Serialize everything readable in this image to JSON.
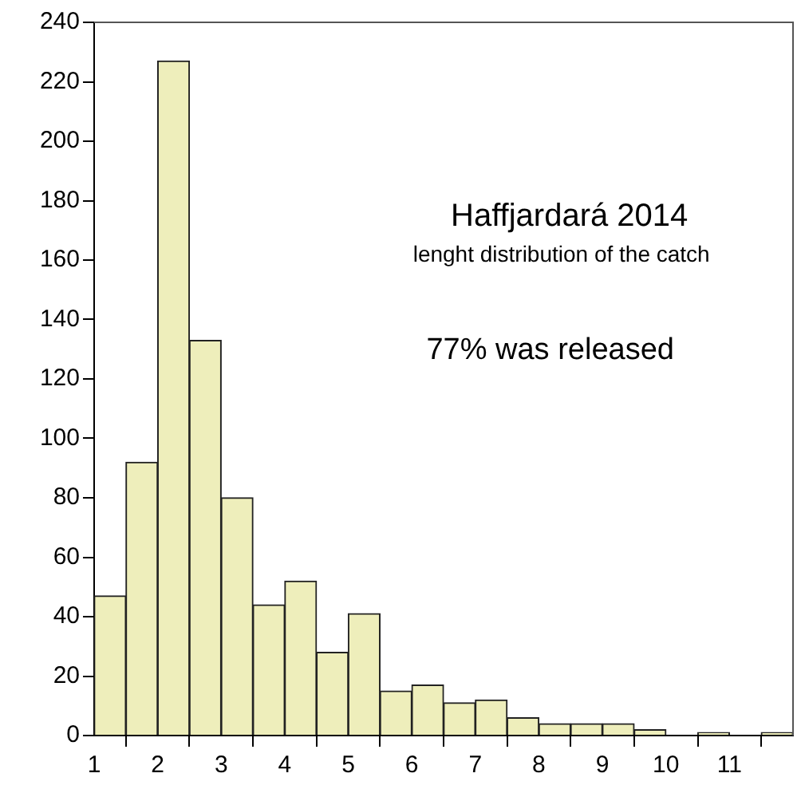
{
  "chart_data": {
    "type": "histogram",
    "title": "Haffjardará 2014",
    "subtitle": "lenght distribution of the catch",
    "annotations": [
      "77% was released"
    ],
    "bins": [
      1,
      1.5,
      2,
      2.5,
      3,
      3.5,
      4,
      4.5,
      5,
      5.5,
      6,
      6.5,
      7,
      7.5,
      8,
      8.5,
      9,
      9.5,
      10,
      10.5,
      11,
      11.5,
      12
    ],
    "values": [
      47,
      92,
      227,
      133,
      80,
      44,
      52,
      28,
      41,
      15,
      17,
      11,
      12,
      6,
      4,
      4,
      4,
      2,
      0,
      1,
      0,
      1
    ],
    "color": "#eeeebb",
    "xlim": [
      1,
      12
    ],
    "xticks": [
      1,
      2,
      3,
      4,
      5,
      6,
      7,
      8,
      9,
      10,
      11,
      {
        "value": 12,
        "label": null
      }
    ],
    "ylim": [
      0,
      240
    ],
    "yticks": [
      0,
      20,
      40,
      60,
      80,
      100,
      120,
      140,
      160,
      180,
      200,
      220,
      240
    ],
    "grid": false,
    "legend": false
  }
}
